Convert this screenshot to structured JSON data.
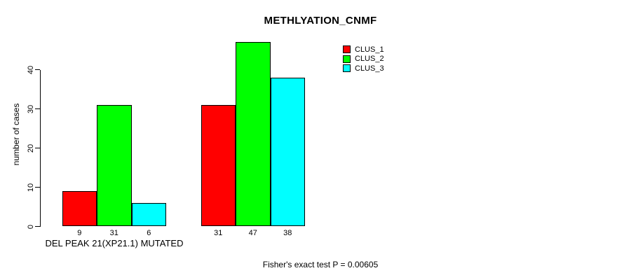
{
  "title": "METHLYATION_CNMF",
  "y_axis": {
    "label": "number of cases",
    "tick_labels": [
      "0",
      "10",
      "20",
      "30",
      "40"
    ]
  },
  "footnote": "Fisher's exact test P = 0.00605",
  "legend": {
    "items": [
      {
        "label": "CLUS_1",
        "color": "#ff0000"
      },
      {
        "label": "CLUS_2",
        "color": "#00ff00"
      },
      {
        "label": "CLUS_3",
        "color": "#00ffff"
      }
    ]
  },
  "colors": {
    "background": "#ffffff",
    "axis": "#000000",
    "bar_border": "#000000"
  },
  "chart_data": {
    "type": "bar",
    "title": "METHLYATION_CNMF",
    "ylabel": "number of cases",
    "xlabel": "",
    "ylim": [
      0,
      47
    ],
    "y_ticks": [
      0,
      10,
      20,
      30,
      40
    ],
    "grid": false,
    "legend_position": "top-right",
    "categories": [
      "DEL PEAK 21(XP21.1) MUTATED",
      ""
    ],
    "series": [
      {
        "name": "CLUS_1",
        "color": "#ff0000",
        "values": [
          9,
          31
        ]
      },
      {
        "name": "CLUS_2",
        "color": "#00ff00",
        "values": [
          31,
          47
        ]
      },
      {
        "name": "CLUS_3",
        "color": "#00ffff",
        "values": [
          6,
          38
        ]
      }
    ],
    "bar_value_labels": [
      [
        "9",
        "31",
        "6"
      ],
      [
        "31",
        "47",
        "38"
      ]
    ],
    "annotation": "Fisher's exact test P = 0.00605"
  }
}
